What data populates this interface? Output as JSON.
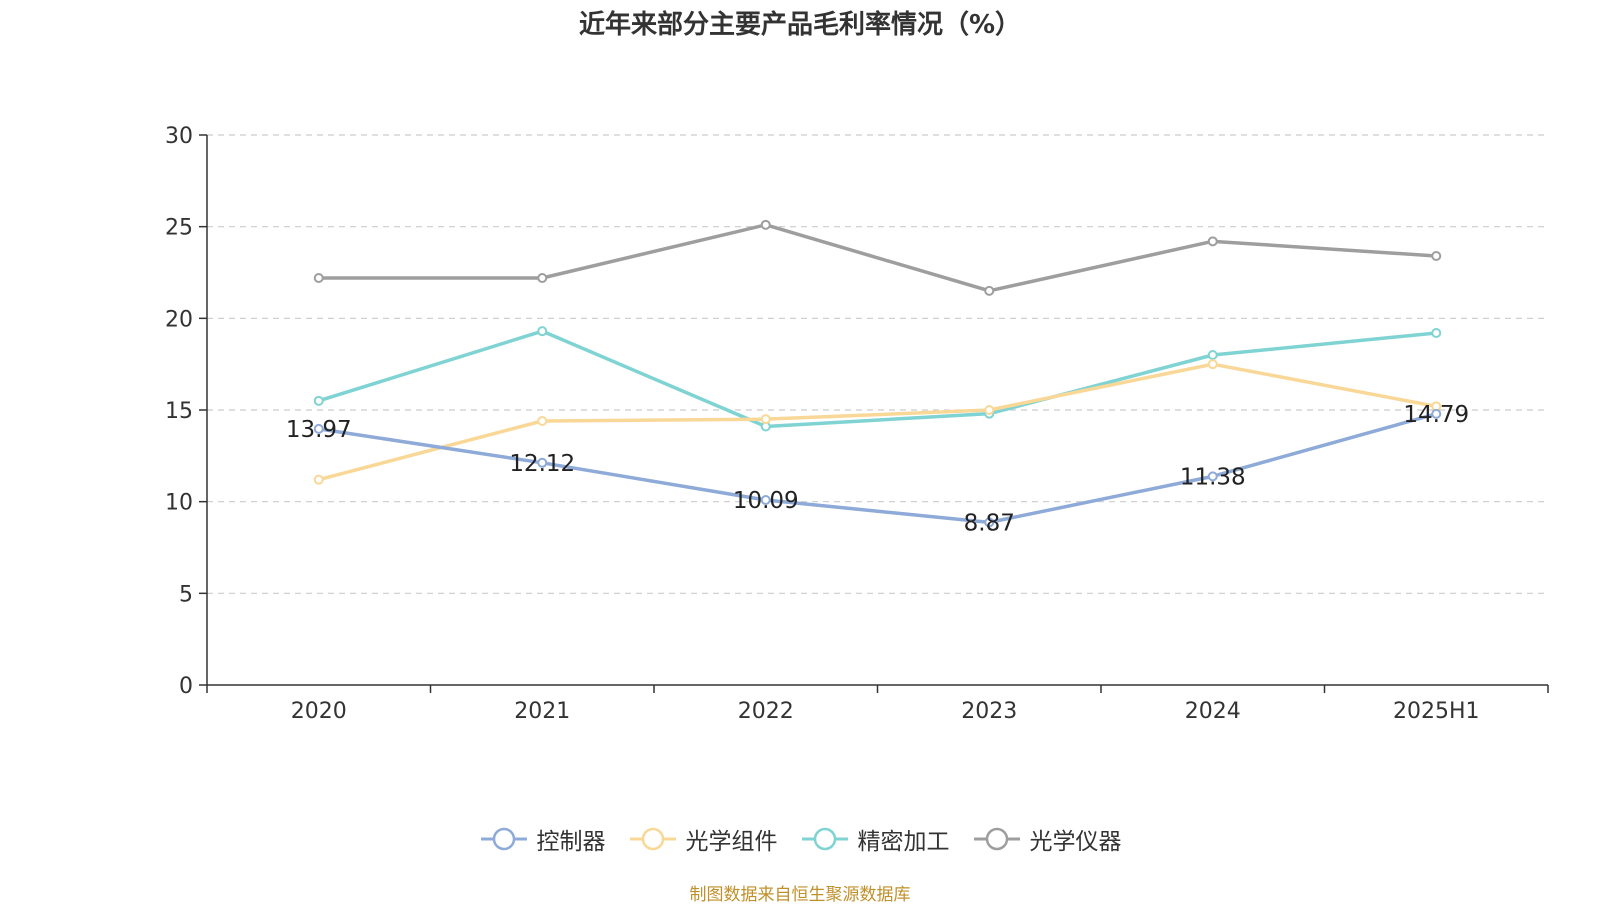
{
  "chart_data": {
    "type": "line",
    "title": "近年来部分主要产品毛利率情况（%）",
    "categories": [
      "2020",
      "2021",
      "2022",
      "2023",
      "2024",
      "2025H1"
    ],
    "ylim": [
      0,
      30
    ],
    "yticks": [
      0,
      5,
      10,
      15,
      20,
      25,
      30
    ],
    "grid": true,
    "legend_position": "bottom",
    "series": [
      {
        "name": "控制器",
        "color": "#8eaad8",
        "values": [
          13.97,
          12.12,
          10.09,
          8.87,
          11.38,
          14.79
        ],
        "labels": [
          "13.97",
          "12.12",
          "10.09",
          "8.87",
          "11.38",
          "14.79"
        ]
      },
      {
        "name": "光学组件",
        "color": "#f9d897",
        "values": [
          11.2,
          14.4,
          14.5,
          15.0,
          17.5,
          15.2
        ]
      },
      {
        "name": "精密加工",
        "color": "#7fd3d3",
        "values": [
          15.5,
          19.3,
          14.1,
          14.8,
          18.0,
          19.2
        ]
      },
      {
        "name": "光学仪器",
        "color": "#9e9e9e",
        "values": [
          22.2,
          22.2,
          25.1,
          21.5,
          24.2,
          23.4
        ]
      }
    ]
  },
  "source_note": "制图数据来自恒生聚源数据库"
}
